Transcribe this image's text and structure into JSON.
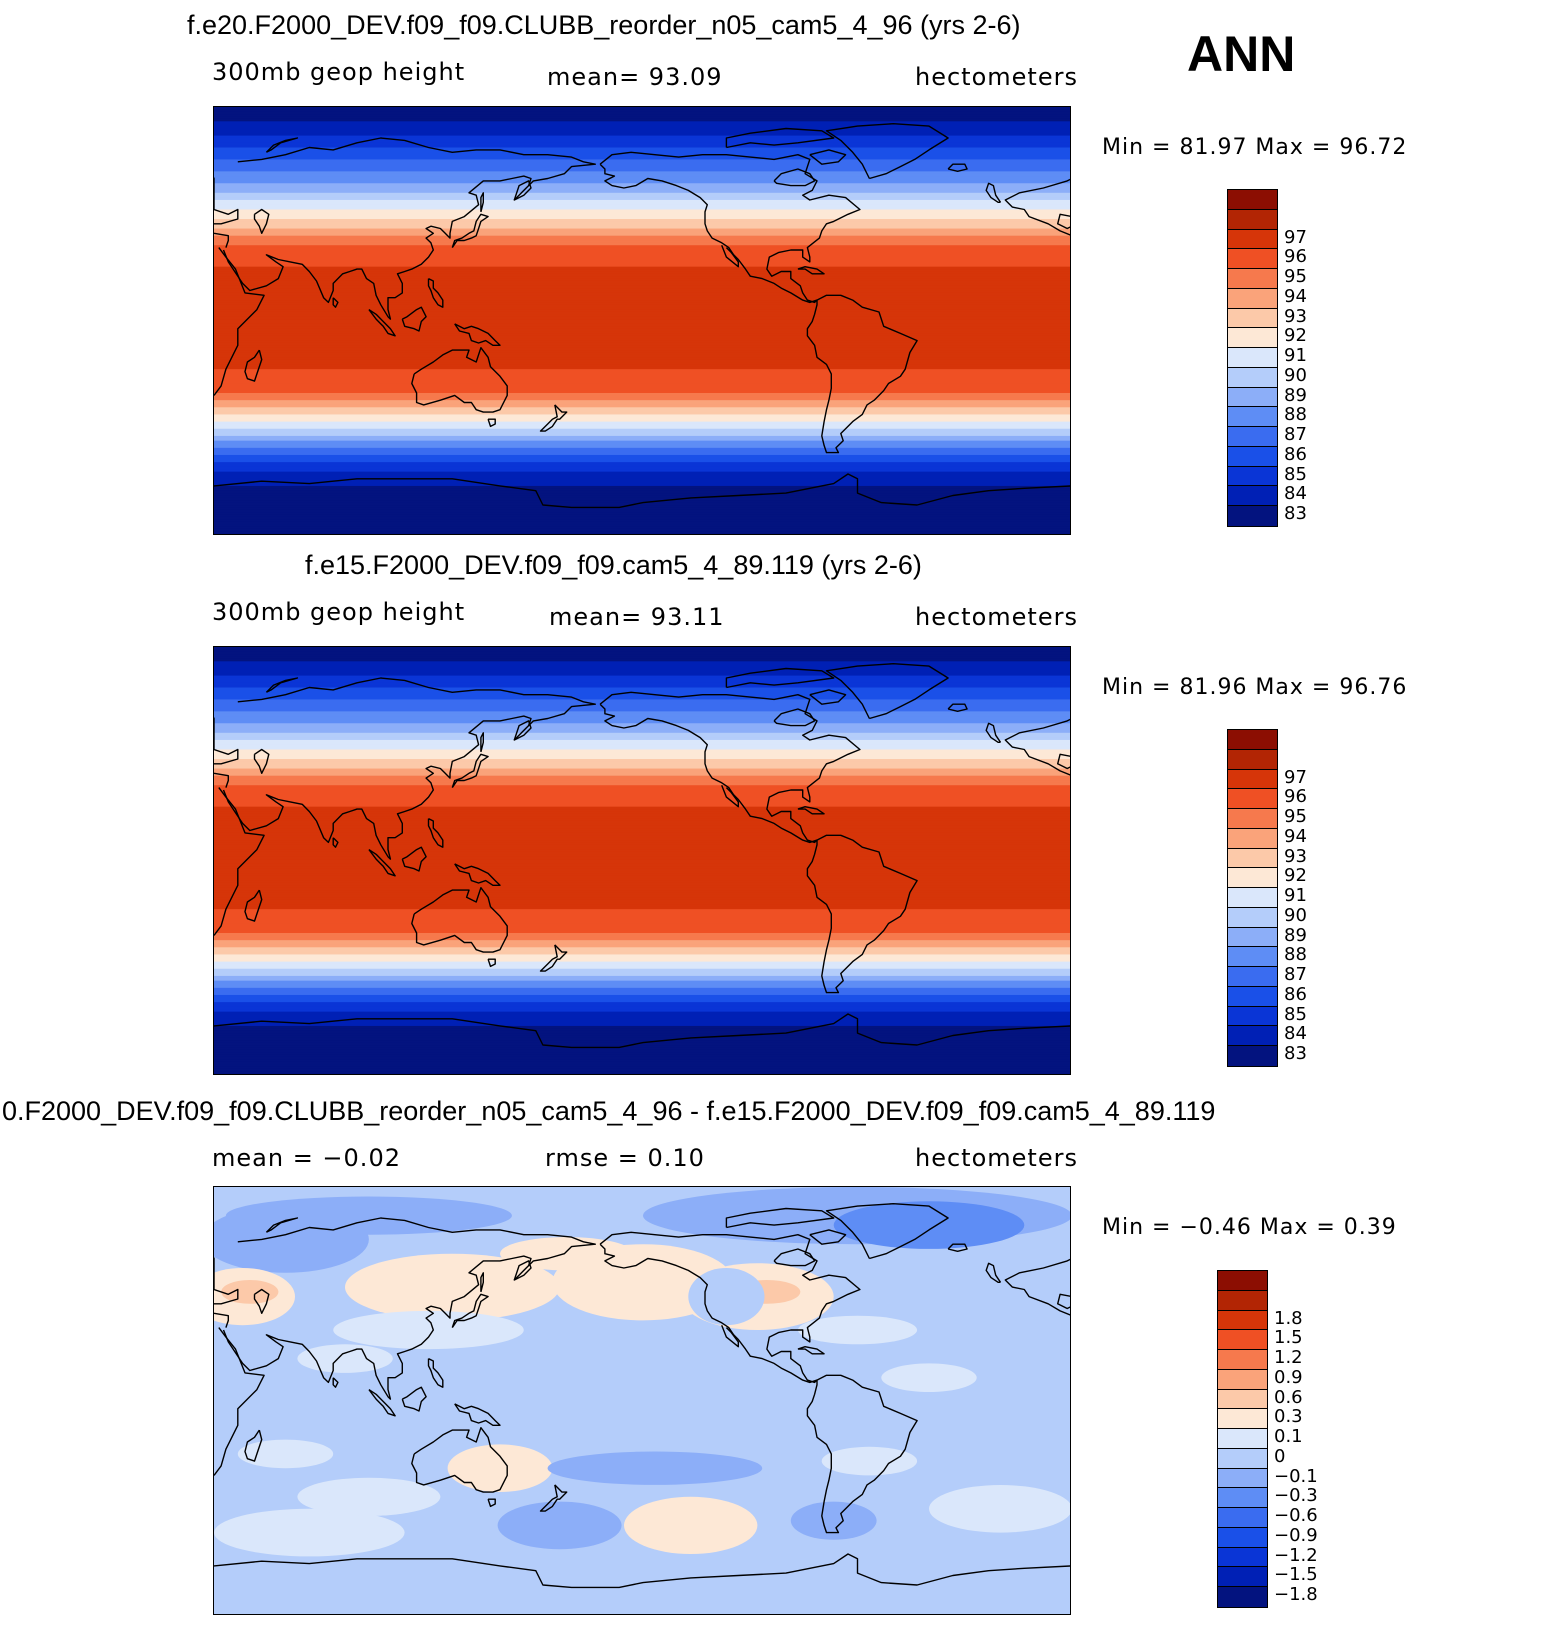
{
  "header": {
    "season": "ANN"
  },
  "panels": [
    {
      "title": "f.e20.F2000_DEV.f09_f09.CLUBB_reorder_n05_cam5_4_96 (yrs 2-6)",
      "variable": "300mb geop height",
      "mean_text": "mean=   93.09",
      "units": "hectometers",
      "minmax": "Min =   81.97  Max =   96.72"
    },
    {
      "title": "f.e15.F2000_DEV.f09_f09.cam5_4_89.119 (yrs 2-6)",
      "variable": "300mb geop height",
      "mean_text": "mean=   93.11",
      "units": "hectometers",
      "minmax": "Min =   81.96  Max =   96.76"
    },
    {
      "title": "0.F2000_DEV.f09_f09.CLUBB_reorder_n05_cam5_4_96 - f.e15.F2000_DEV.f09_f09.cam5_4_89.119",
      "variable": "mean =   −0.02",
      "mean_text": "rmse =    0.10",
      "units": "hectometers",
      "minmax": "Min =   −0.46  Max =     0.39"
    }
  ],
  "chart_data": [
    {
      "type": "heatmap",
      "title": "f.e20.F2000_DEV.f09_f09.CLUBB_reorder_n05_cam5_4_96 (yrs 2-6)",
      "field": "300mb geop height",
      "units": "hectometers",
      "mean": 93.09,
      "min": 81.97,
      "max": 96.72,
      "levels": [
        83,
        84,
        85,
        86,
        87,
        88,
        89,
        90,
        91,
        92,
        93,
        94,
        95,
        96,
        97
      ],
      "level_labels": [
        "83",
        "84",
        "85",
        "86",
        "87",
        "88",
        "89",
        "90",
        "91",
        "92",
        "93",
        "94",
        "95",
        "96",
        "97"
      ],
      "colors": [
        "#03137f",
        "#0020b5",
        "#0a35d6",
        "#1a50e8",
        "#3a6cf0",
        "#5e8df5",
        "#8caef8",
        "#b4cdfa",
        "#dae7fb",
        "#fde8d6",
        "#fcc9a9",
        "#faa37a",
        "#f6794d",
        "#ef5024",
        "#d63509",
        "#b22504",
        "#8c0e02"
      ],
      "zonal_profile": [
        [
          90,
          82
        ],
        [
          75,
          84.5
        ],
        [
          60,
          87.5
        ],
        [
          45,
          91.5
        ],
        [
          30,
          95.5
        ],
        [
          15,
          96.5
        ],
        [
          0,
          96.6
        ],
        [
          -15,
          96.5
        ],
        [
          -30,
          95
        ],
        [
          -45,
          90
        ],
        [
          -60,
          84.5
        ],
        [
          -75,
          82
        ],
        [
          -90,
          82
        ]
      ]
    },
    {
      "type": "heatmap",
      "title": "f.e15.F2000_DEV.f09_f09.cam5_4_89.119 (yrs 2-6)",
      "field": "300mb geop height",
      "units": "hectometers",
      "mean": 93.11,
      "min": 81.96,
      "max": 96.76,
      "levels": [
        83,
        84,
        85,
        86,
        87,
        88,
        89,
        90,
        91,
        92,
        93,
        94,
        95,
        96,
        97
      ],
      "level_labels": [
        "83",
        "84",
        "85",
        "86",
        "87",
        "88",
        "89",
        "90",
        "91",
        "92",
        "93",
        "94",
        "95",
        "96",
        "97"
      ],
      "colors": [
        "#03137f",
        "#0020b5",
        "#0a35d6",
        "#1a50e8",
        "#3a6cf0",
        "#5e8df5",
        "#8caef8",
        "#b4cdfa",
        "#dae7fb",
        "#fde8d6",
        "#fcc9a9",
        "#faa37a",
        "#f6794d",
        "#ef5024",
        "#d63509",
        "#b22504",
        "#8c0e02"
      ],
      "zonal_profile": [
        [
          90,
          82
        ],
        [
          75,
          84.5
        ],
        [
          60,
          87.5
        ],
        [
          45,
          91.5
        ],
        [
          30,
          95.5
        ],
        [
          15,
          96.5
        ],
        [
          0,
          96.6
        ],
        [
          -15,
          96.5
        ],
        [
          -30,
          95
        ],
        [
          -45,
          90
        ],
        [
          -60,
          84.5
        ],
        [
          -75,
          82
        ],
        [
          -90,
          82
        ]
      ]
    },
    {
      "type": "heatmap",
      "title": "0.F2000_DEV.f09_f09.CLUBB_reorder_n05_cam5_4_96 - f.e15.F2000_DEV.f09_f09.cam5_4_89.119",
      "field": "difference",
      "units": "hectometers",
      "mean": -0.02,
      "rmse": 0.1,
      "min": -0.46,
      "max": 0.39,
      "levels": [
        -1.8,
        -1.5,
        -1.2,
        -0.9,
        -0.6,
        -0.3,
        -0.1,
        0,
        0.1,
        0.3,
        0.6,
        0.9,
        1.2,
        1.5,
        1.8
      ],
      "level_labels": [
        "−1.8",
        "−1.5",
        "−1.2",
        "−0.9",
        "−0.6",
        "−0.3",
        "−0.1",
        "0",
        "0.1",
        "0.3",
        "0.6",
        "0.9",
        "1.2",
        "1.5",
        "1.8"
      ],
      "colors": [
        "#03137f",
        "#0020b5",
        "#0a35d6",
        "#1a50e8",
        "#3a6cf0",
        "#5e8df5",
        "#8caef8",
        "#b4cdfa",
        "#dae7fb",
        "#fde8d6",
        "#fcc9a9",
        "#faa37a",
        "#f6794d",
        "#ef5024",
        "#d63509",
        "#b22504",
        "#8c0e02"
      ]
    }
  ]
}
